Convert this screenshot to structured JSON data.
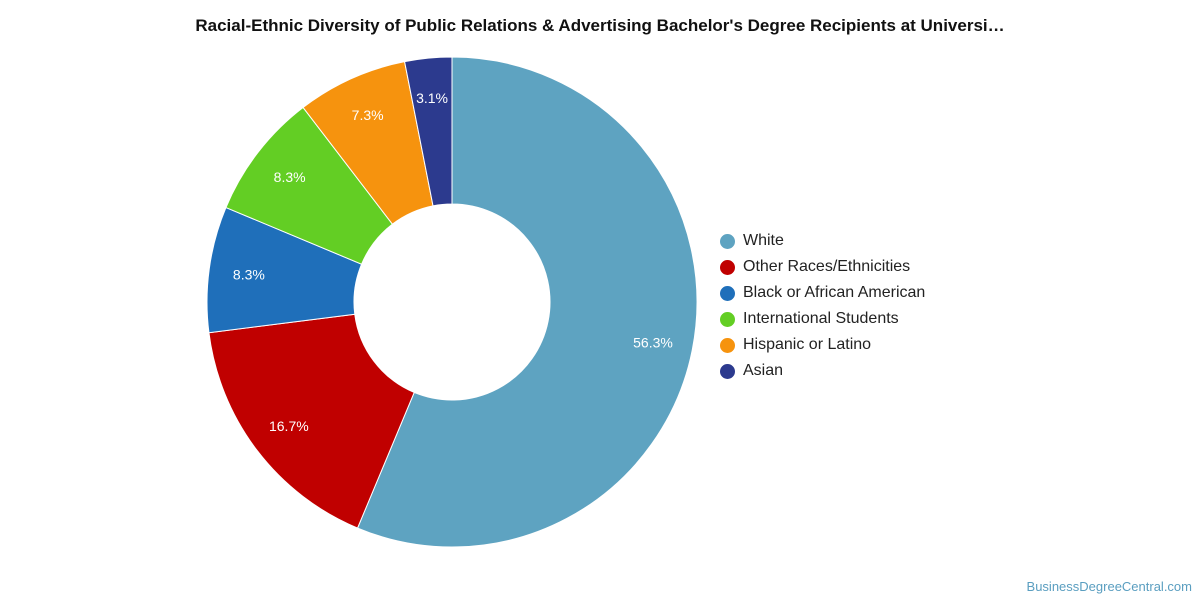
{
  "chart_data": {
    "type": "pie",
    "title": "Racial-Ethnic Diversity of Public Relations & Advertising Bachelor's Degree Recipients at Universi…",
    "categories": [
      "White",
      "Other Races/Ethnicities",
      "Black or African American",
      "International Students",
      "Hispanic or Latino",
      "Asian"
    ],
    "values": [
      56.3,
      16.7,
      8.3,
      8.3,
      7.3,
      3.1
    ],
    "value_labels": [
      "56.3%",
      "16.7%",
      "8.3%",
      "8.3%",
      "7.3%",
      "3.1%"
    ],
    "colors": [
      "#5ea3c1",
      "#c00000",
      "#1f6fba",
      "#63ce24",
      "#f6930e",
      "#2c3a8e"
    ],
    "donut": true,
    "legend_position": "right"
  },
  "source": "BusinessDegreeCentral.com"
}
